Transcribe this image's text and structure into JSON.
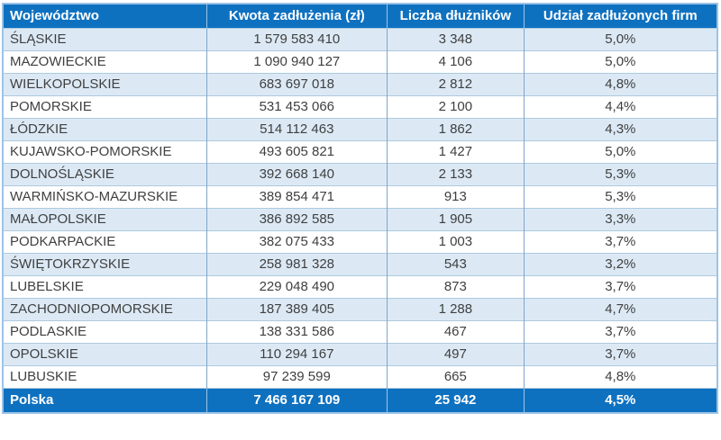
{
  "table": {
    "columns": [
      "Województwo",
      "Kwota zadłużenia (zł)",
      "Liczba dłużników",
      "Udział zadłużonych firm"
    ],
    "rows": [
      [
        "ŚLĄSKIE",
        "1 579 583 410",
        "3 348",
        "5,0%"
      ],
      [
        "MAZOWIECKIE",
        "1 090 940 127",
        "4 106",
        "5,0%"
      ],
      [
        "WIELKOPOLSKIE",
        "683 697 018",
        "2 812",
        "4,8%"
      ],
      [
        "POMORSKIE",
        "531 453 066",
        "2 100",
        "4,4%"
      ],
      [
        "ŁÓDZKIE",
        "514 112 463",
        "1 862",
        "4,3%"
      ],
      [
        "KUJAWSKO-POMORSKIE",
        "493 605 821",
        "1 427",
        "5,0%"
      ],
      [
        "DOLNOŚLĄSKIE",
        "392 668 140",
        "2 133",
        "5,3%"
      ],
      [
        "WARMIŃSKO-MAZURSKIE",
        "389 854 471",
        "913",
        "5,3%"
      ],
      [
        "MAŁOPOLSKIE",
        "386 892 585",
        "1 905",
        "3,3%"
      ],
      [
        "PODKARPACKIE",
        "382 075 433",
        "1 003",
        "3,7%"
      ],
      [
        "ŚWIĘTOKRZYSKIE",
        "258 981 328",
        "543",
        "3,2%"
      ],
      [
        "LUBELSKIE",
        "229 048 490",
        "873",
        "3,7%"
      ],
      [
        "ZACHODNIOPOMORSKIE",
        "187 389 405",
        "1 288",
        "4,7%"
      ],
      [
        "PODLASKIE",
        "138 331 586",
        "467",
        "3,7%"
      ],
      [
        "OPOLSKIE",
        "110 294 167",
        "497",
        "3,7%"
      ],
      [
        "LUBUSKIE",
        "97 239 599",
        "665",
        "4,8%"
      ]
    ],
    "footer": [
      "Polska",
      "7 466 167 109",
      "25 942",
      "4,5%"
    ]
  },
  "colors": {
    "header_bg": "#0E71C0",
    "header_text": "#FFFFFF",
    "row_bg": "#FFFFFF",
    "row_alt_bg": "#DCE9F5",
    "body_text": "#3F3F3F",
    "grid_vertical": "#7FA5C9",
    "grid_horizontal": "#ADC9DF",
    "outer_border": "#9DC3E6",
    "footer_bg": "#0E71C0",
    "footer_text": "#FFFFFF"
  }
}
